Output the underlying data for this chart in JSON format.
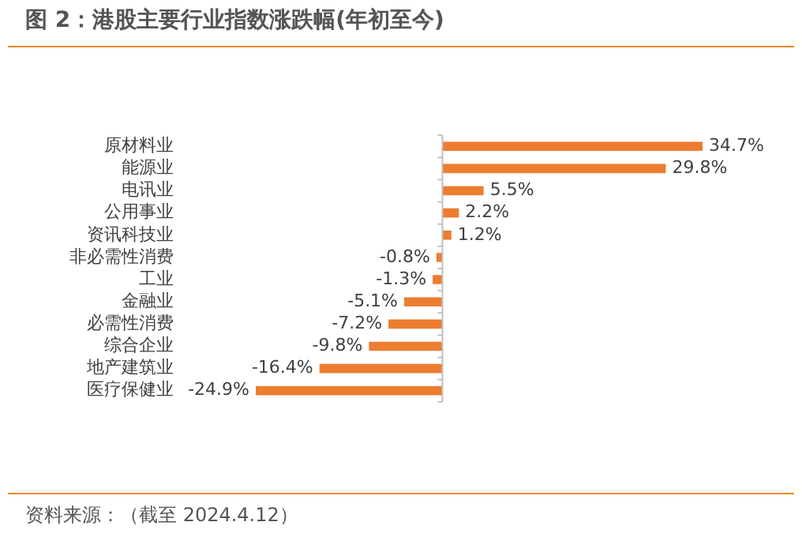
{
  "chart_data": {
    "type": "bar",
    "orientation": "horizontal",
    "title": "图 2：港股主要行业指数涨跌幅(年初至今)",
    "categories": [
      "原材料业",
      "能源业",
      "电讯业",
      "公用事业",
      "资讯科技业",
      "非必需性消费",
      "工业",
      "金融业",
      "必需性消费",
      "综合企业",
      "地产建筑业",
      "医疗保健业"
    ],
    "values": [
      34.7,
      29.8,
      5.5,
      2.2,
      1.2,
      -0.8,
      -1.3,
      -5.1,
      -7.2,
      -9.8,
      -16.4,
      -24.9
    ],
    "value_labels": [
      "34.7%",
      "29.8%",
      "5.5%",
      "2.2%",
      "1.2%",
      "-0.8%",
      "-1.3%",
      "-5.1%",
      "-7.2%",
      "-9.8%",
      "-16.4%",
      "-24.9%"
    ],
    "color": "#ed7d31",
    "grid": false,
    "legend": false,
    "annotations": [
      "资料来源：（截至 2024.4.12）"
    ]
  }
}
